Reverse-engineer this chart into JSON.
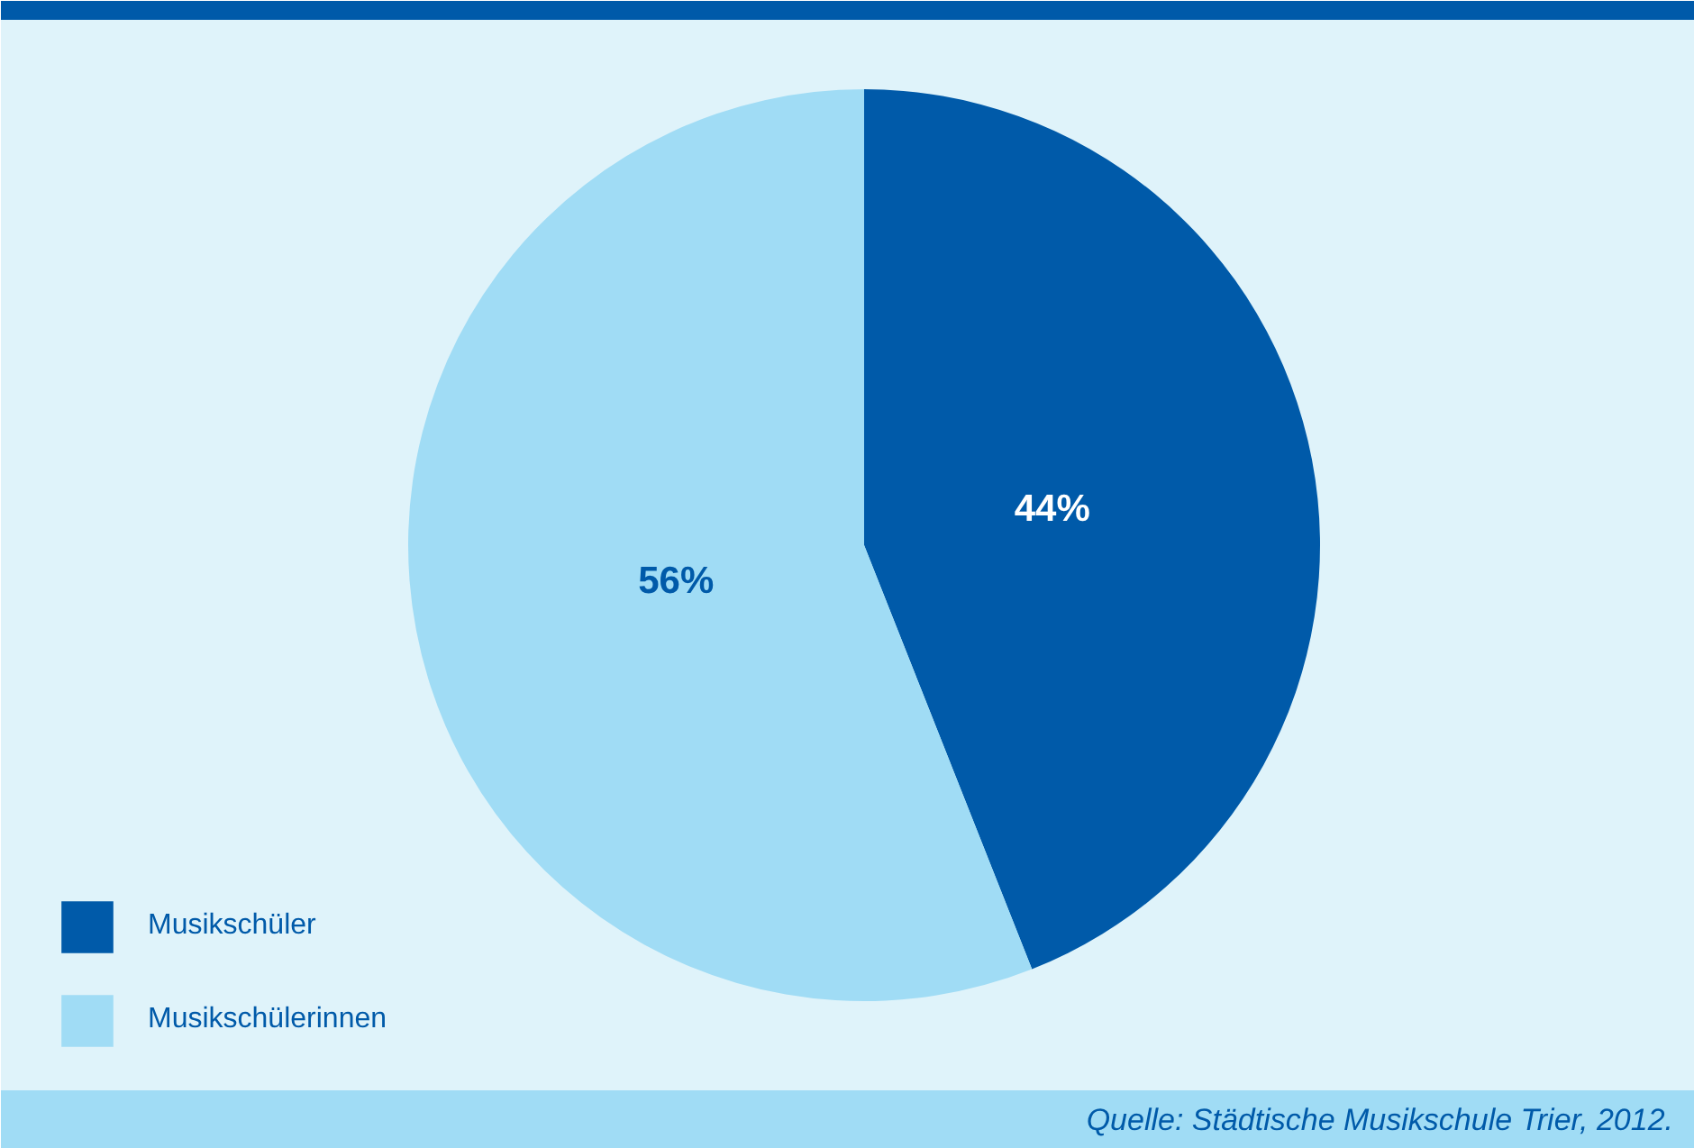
{
  "chart_data": {
    "type": "pie",
    "categories": [
      "Musikschüler",
      "Musikschülerinnen"
    ],
    "values": [
      44,
      56
    ],
    "colors": [
      "#005aa9",
      "#a0dcf5"
    ],
    "value_labels": [
      "44%",
      "56%"
    ],
    "legend": "bottom left",
    "annotations": [
      "Quelle: Städtische Musikschule Trier, 2012."
    ]
  }
}
